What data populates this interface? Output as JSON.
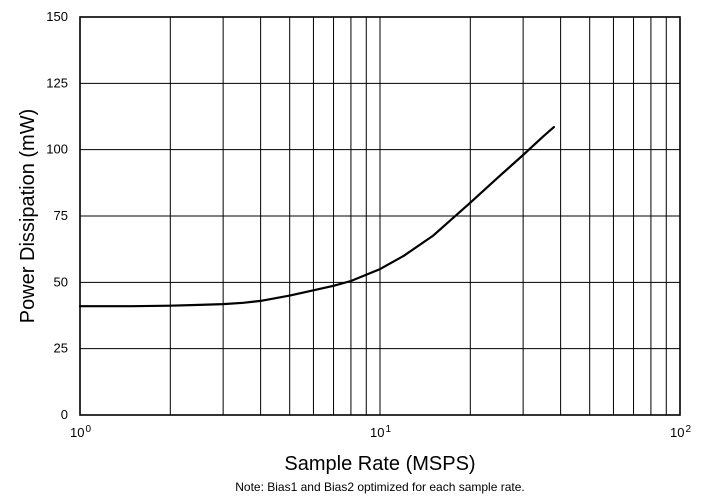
{
  "chart_data": {
    "type": "line",
    "title": "",
    "xlabel": "Sample Rate (MSPS)",
    "ylabel": "Power Dissipation (mW)",
    "note": "Note: Bias1 and Bias2 optimized for each sample rate.",
    "xscale": "log",
    "xlim": [
      1,
      100
    ],
    "ylim": [
      0,
      150
    ],
    "grid": true,
    "x_ticks": [
      {
        "base": "10",
        "exp": "0"
      },
      {
        "base": "10",
        "exp": "1"
      },
      {
        "base": "10",
        "exp": "2"
      }
    ],
    "y_ticks": [
      "0",
      "25",
      "50",
      "75",
      "100",
      "125",
      "150"
    ],
    "series": [
      {
        "x": [
          1,
          1.5,
          2,
          2.5,
          3,
          3.5,
          4,
          5,
          6,
          7,
          8,
          10,
          12,
          15,
          20,
          25,
          30,
          35,
          38
        ],
        "y": [
          41,
          41,
          41.2,
          41.5,
          41.8,
          42.3,
          43,
          45,
          47,
          48.7,
          50.5,
          55,
          60,
          67.5,
          80,
          90,
          98,
          105,
          108.5
        ]
      }
    ]
  }
}
